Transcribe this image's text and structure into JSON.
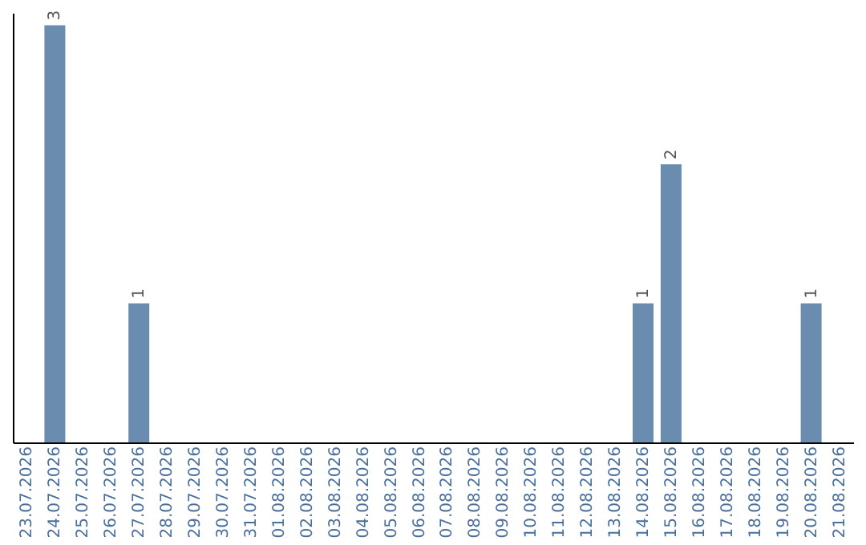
{
  "chart_data": {
    "type": "bar",
    "categories": [
      "23.07.2026",
      "24.07.2026",
      "25.07.2026",
      "26.07.2026",
      "27.07.2026",
      "28.07.2026",
      "29.07.2026",
      "30.07.2026",
      "31.07.2026",
      "01.08.2026",
      "02.08.2026",
      "03.08.2026",
      "04.08.2026",
      "05.08.2026",
      "06.08.2026",
      "07.08.2026",
      "08.08.2026",
      "09.08.2026",
      "10.08.2026",
      "11.08.2026",
      "12.08.2026",
      "13.08.2026",
      "14.08.2026",
      "15.08.2026",
      "16.08.2026",
      "17.08.2026",
      "18.08.2026",
      "19.08.2026",
      "20.08.2026",
      "21.08.2026"
    ],
    "values": [
      0,
      3,
      0,
      0,
      1,
      0,
      0,
      0,
      0,
      0,
      0,
      0,
      0,
      0,
      0,
      0,
      0,
      0,
      0,
      0,
      0,
      0,
      1,
      2,
      0,
      0,
      0,
      0,
      1,
      0
    ],
    "value_labels": [
      null,
      "3",
      null,
      null,
      "1",
      null,
      null,
      null,
      null,
      null,
      null,
      null,
      null,
      null,
      null,
      null,
      null,
      null,
      null,
      null,
      null,
      null,
      "1",
      "2",
      null,
      null,
      null,
      null,
      "1",
      null
    ],
    "color": "#6a8caf",
    "grid": false
  }
}
